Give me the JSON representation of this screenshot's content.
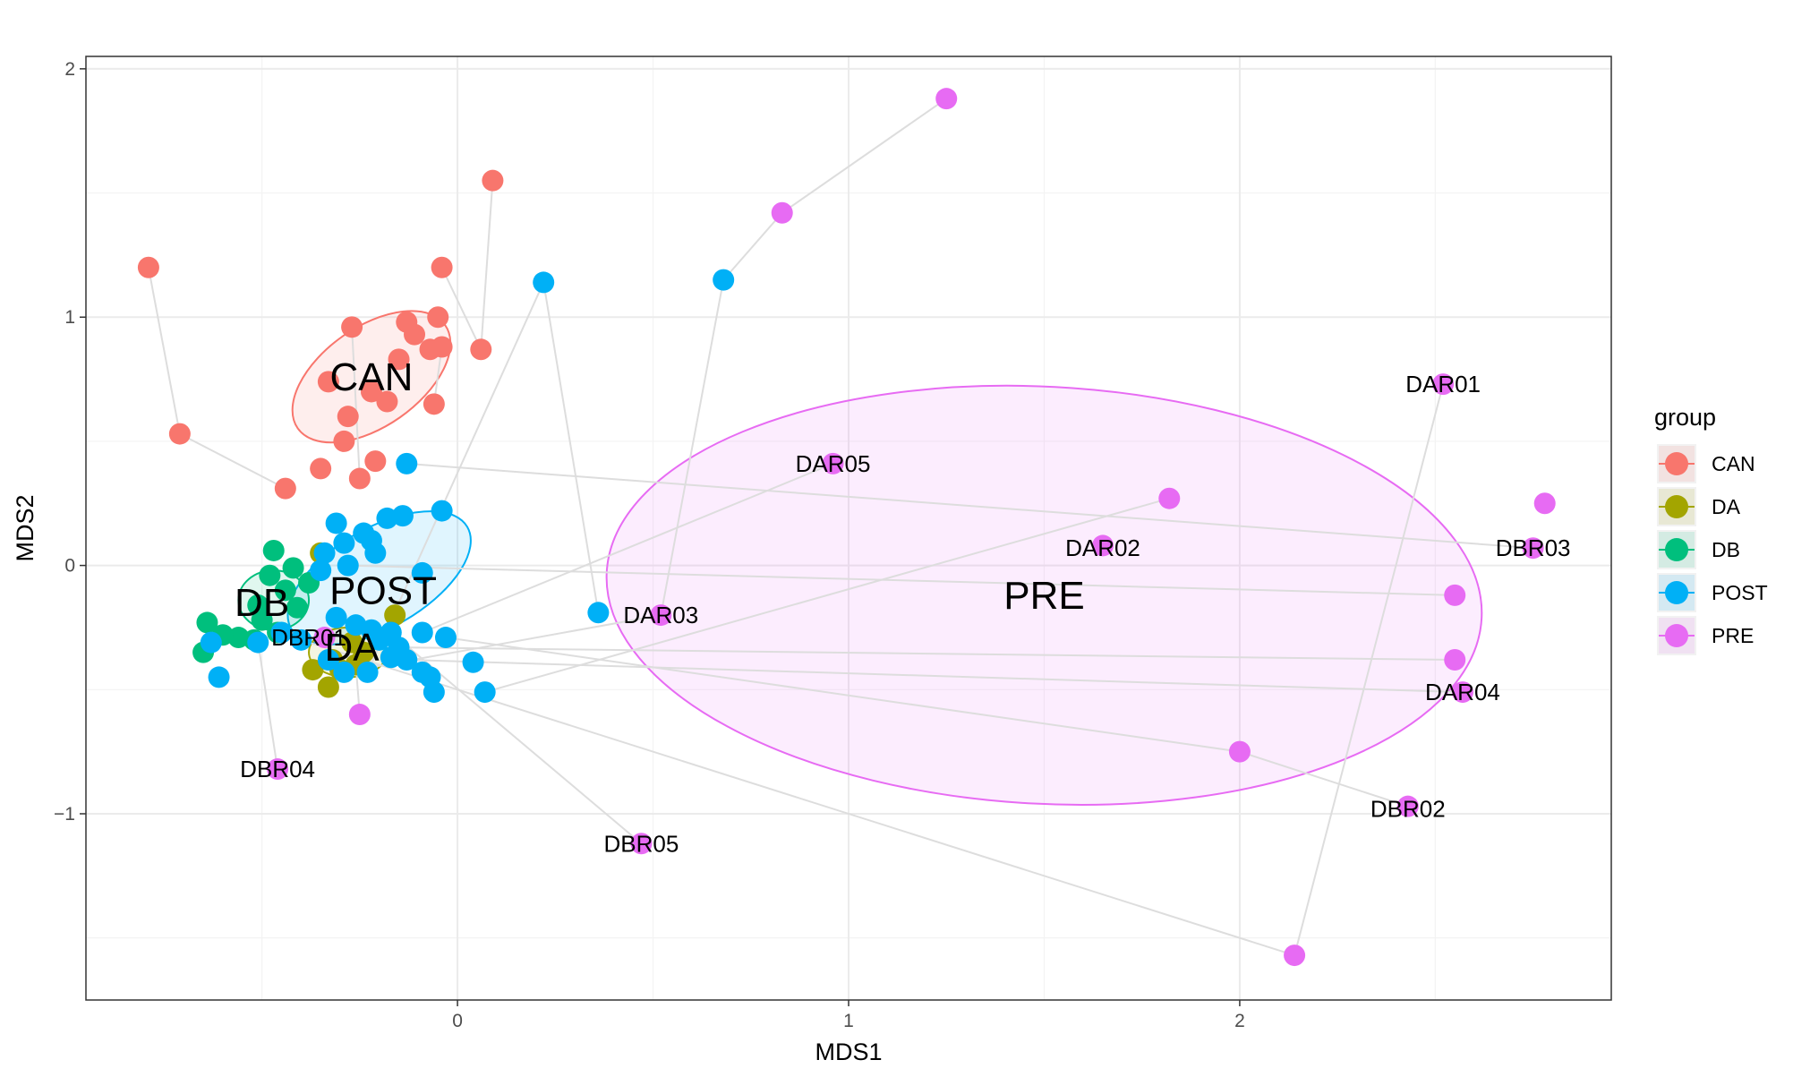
{
  "chart_data": {
    "type": "scatter",
    "xlabel": "MDS1",
    "ylabel": "MDS2",
    "xlim": [
      -0.95,
      2.95
    ],
    "ylim": [
      -1.75,
      2.05
    ],
    "xticks": [
      0,
      1,
      2
    ],
    "xtick_labels": [
      "0",
      "1",
      "2"
    ],
    "yticks": [
      -1,
      0,
      1,
      2
    ],
    "ytick_labels": [
      "−1",
      "0",
      "1",
      "2"
    ],
    "grid": true,
    "legend": {
      "title": "group",
      "position": "right",
      "entries": [
        "CAN",
        "DA",
        "DB",
        "POST",
        "PRE"
      ]
    },
    "colors": {
      "CAN": "#F8766D",
      "DA": "#A3A500",
      "DB": "#00BF7D",
      "POST": "#00B0F6",
      "PRE": "#E76BF3",
      "segment": "#dddddd",
      "grid_major": "#ebebeb",
      "grid_minor": "#f3f3f3",
      "panel_border": "#333333"
    },
    "ellipses": [
      {
        "group": "CAN",
        "cx": -0.22,
        "cy": 0.76,
        "rx": 0.23,
        "ry": 0.2,
        "angle_deg": 35
      },
      {
        "group": "POST",
        "cx": -0.2,
        "cy": -0.05,
        "rx": 0.26,
        "ry": 0.2,
        "angle_deg": 30
      },
      {
        "group": "DB",
        "cx": -0.47,
        "cy": -0.14,
        "rx": 0.09,
        "ry": 0.12,
        "angle_deg": 0
      },
      {
        "group": "DA",
        "cx": -0.28,
        "cy": -0.35,
        "rx": 0.1,
        "ry": 0.1,
        "angle_deg": 0
      },
      {
        "group": "PRE",
        "cx": 1.5,
        "cy": -0.12,
        "rx": 1.12,
        "ry": 0.84,
        "angle_deg": -3
      }
    ],
    "centroids": [
      {
        "label": "CAN",
        "x": -0.22,
        "y": 0.76
      },
      {
        "label": "POST",
        "x": -0.19,
        "y": -0.1
      },
      {
        "label": "DB",
        "x": -0.5,
        "y": -0.15
      },
      {
        "label": "DA",
        "x": -0.27,
        "y": -0.33
      },
      {
        "label": "PRE",
        "x": 1.5,
        "y": -0.12
      }
    ],
    "series": [
      {
        "name": "CAN",
        "points": [
          [
            -0.79,
            1.2
          ],
          [
            -0.71,
            0.53
          ],
          [
            0.09,
            1.55
          ],
          [
            -0.04,
            1.2
          ],
          [
            -0.05,
            1.0
          ],
          [
            -0.13,
            0.98
          ],
          [
            -0.27,
            0.96
          ],
          [
            -0.11,
            0.93
          ],
          [
            -0.07,
            0.87
          ],
          [
            -0.04,
            0.88
          ],
          [
            -0.15,
            0.83
          ],
          [
            0.06,
            0.87
          ],
          [
            -0.33,
            0.74
          ],
          [
            -0.22,
            0.7
          ],
          [
            -0.28,
            0.6
          ],
          [
            -0.18,
            0.66
          ],
          [
            -0.06,
            0.65
          ],
          [
            -0.29,
            0.5
          ],
          [
            -0.21,
            0.42
          ],
          [
            -0.35,
            0.39
          ],
          [
            -0.25,
            0.35
          ],
          [
            -0.44,
            0.31
          ]
        ]
      },
      {
        "name": "DA",
        "points": [
          [
            -0.35,
            0.05
          ],
          [
            -0.32,
            -0.38
          ],
          [
            -0.3,
            -0.42
          ],
          [
            -0.37,
            -0.42
          ],
          [
            -0.33,
            -0.49
          ],
          [
            -0.26,
            -0.4
          ],
          [
            -0.24,
            -0.35
          ],
          [
            -0.27,
            -0.31
          ],
          [
            -0.16,
            -0.2
          ]
        ]
      },
      {
        "name": "DB",
        "points": [
          [
            -0.47,
            0.06
          ],
          [
            -0.42,
            -0.01
          ],
          [
            -0.38,
            -0.07
          ],
          [
            -0.48,
            -0.04
          ],
          [
            -0.44,
            -0.1
          ],
          [
            -0.51,
            -0.16
          ],
          [
            -0.5,
            -0.22
          ],
          [
            -0.56,
            -0.29
          ],
          [
            -0.6,
            -0.28
          ],
          [
            -0.64,
            -0.23
          ],
          [
            -0.65,
            -0.35
          ],
          [
            -0.52,
            -0.3
          ],
          [
            -0.46,
            -0.27
          ],
          [
            -0.41,
            -0.17
          ]
        ]
      },
      {
        "name": "POST",
        "points": [
          [
            0.22,
            1.14
          ],
          [
            0.68,
            1.15
          ],
          [
            -0.13,
            0.41
          ],
          [
            -0.04,
            0.22
          ],
          [
            -0.14,
            0.2
          ],
          [
            -0.18,
            0.19
          ],
          [
            -0.31,
            0.17
          ],
          [
            -0.24,
            0.13
          ],
          [
            -0.29,
            0.09
          ],
          [
            -0.22,
            0.1
          ],
          [
            -0.34,
            0.05
          ],
          [
            -0.21,
            0.05
          ],
          [
            -0.28,
            0.0
          ],
          [
            -0.35,
            -0.02
          ],
          [
            -0.09,
            -0.03
          ],
          [
            0.36,
            -0.19
          ],
          [
            -0.31,
            -0.21
          ],
          [
            -0.26,
            -0.24
          ],
          [
            -0.22,
            -0.26
          ],
          [
            -0.17,
            -0.27
          ],
          [
            -0.09,
            -0.27
          ],
          [
            -0.2,
            -0.3
          ],
          [
            -0.15,
            -0.33
          ],
          [
            -0.03,
            -0.29
          ],
          [
            -0.4,
            -0.3
          ],
          [
            -0.51,
            -0.31
          ],
          [
            -0.63,
            -0.31
          ],
          [
            -0.17,
            -0.37
          ],
          [
            -0.13,
            -0.38
          ],
          [
            0.04,
            -0.39
          ],
          [
            -0.33,
            -0.38
          ],
          [
            -0.09,
            -0.43
          ],
          [
            -0.07,
            -0.45
          ],
          [
            -0.29,
            -0.43
          ],
          [
            -0.23,
            -0.43
          ],
          [
            -0.61,
            -0.45
          ],
          [
            -0.06,
            -0.51
          ],
          [
            0.07,
            -0.51
          ],
          [
            -0.45,
            -0.27
          ]
        ]
      },
      {
        "name": "PRE",
        "points": [
          [
            1.25,
            1.88
          ],
          [
            0.83,
            1.42
          ],
          [
            2.52,
            0.73
          ],
          [
            0.96,
            0.41
          ],
          [
            1.82,
            0.27
          ],
          [
            2.78,
            0.25
          ],
          [
            1.65,
            0.08
          ],
          [
            2.75,
            0.07
          ],
          [
            0.52,
            -0.2
          ],
          [
            2.55,
            -0.12
          ],
          [
            2.55,
            -0.38
          ],
          [
            2.57,
            -0.51
          ],
          [
            2.0,
            -0.75
          ],
          [
            2.43,
            -0.97
          ],
          [
            -0.46,
            -0.82
          ],
          [
            0.47,
            -1.12
          ],
          [
            2.14,
            -1.57
          ],
          [
            -0.25,
            -0.6
          ],
          [
            -0.34,
            -0.29
          ]
        ]
      }
    ],
    "segments": [
      {
        "from": [
          -0.79,
          1.2
        ],
        "to": [
          -0.71,
          0.53
        ]
      },
      {
        "from": [
          -0.71,
          0.53
        ],
        "to": [
          -0.44,
          0.31
        ]
      },
      {
        "from": [
          0.09,
          1.55
        ],
        "to": [
          0.06,
          0.87
        ]
      },
      {
        "from": [
          -0.04,
          1.2
        ],
        "to": [
          0.06,
          0.87
        ]
      },
      {
        "from": [
          -0.27,
          0.96
        ],
        "to": [
          -0.25,
          0.35
        ]
      },
      {
        "from": [
          -0.04,
          0.88
        ],
        "to": [
          -0.06,
          0.65
        ]
      },
      {
        "from": [
          1.25,
          1.88
        ],
        "to": [
          0.83,
          1.42
        ]
      },
      {
        "from": [
          0.83,
          1.42
        ],
        "to": [
          0.68,
          1.15
        ]
      },
      {
        "from": [
          0.68,
          1.15
        ],
        "to": [
          0.52,
          -0.2
        ]
      },
      {
        "from": [
          0.22,
          1.14
        ],
        "to": [
          0.36,
          -0.19
        ]
      },
      {
        "from": [
          0.22,
          1.14
        ],
        "to": [
          -0.23,
          -0.43
        ]
      },
      {
        "from": [
          2.52,
          0.73
        ],
        "to": [
          2.14,
          -1.57
        ]
      },
      {
        "from": [
          -0.13,
          0.41
        ],
        "to": [
          2.75,
          0.07
        ]
      },
      {
        "from": [
          0.96,
          0.41
        ],
        "to": [
          -0.09,
          -0.27
        ]
      },
      {
        "from": [
          1.82,
          0.27
        ],
        "to": [
          0.07,
          -0.51
        ]
      },
      {
        "from": [
          -0.28,
          0.0
        ],
        "to": [
          2.55,
          -0.12
        ]
      },
      {
        "from": [
          -0.15,
          -0.33
        ],
        "to": [
          2.55,
          -0.38
        ]
      },
      {
        "from": [
          0.52,
          -0.2
        ],
        "to": [
          -0.29,
          -0.43
        ]
      },
      {
        "from": [
          -0.13,
          -0.38
        ],
        "to": [
          2.57,
          -0.51
        ]
      },
      {
        "from": [
          -0.03,
          -0.29
        ],
        "to": [
          2.0,
          -0.75
        ]
      },
      {
        "from": [
          2.0,
          -0.75
        ],
        "to": [
          2.43,
          -0.97
        ]
      },
      {
        "from": [
          0.47,
          -1.12
        ],
        "to": [
          -0.17,
          -0.27
        ]
      },
      {
        "from": [
          -0.51,
          -0.31
        ],
        "to": [
          -0.46,
          -0.82
        ]
      },
      {
        "from": [
          -0.4,
          -0.3
        ],
        "to": [
          2.14,
          -1.57
        ]
      },
      {
        "from": [
          -0.25,
          -0.6
        ],
        "to": [
          -0.26,
          -0.4
        ]
      }
    ],
    "point_labels": [
      {
        "text": "DAR01",
        "x": 2.52,
        "y": 0.73
      },
      {
        "text": "DAR05",
        "x": 0.96,
        "y": 0.41
      },
      {
        "text": "DAR02",
        "x": 1.65,
        "y": 0.07
      },
      {
        "text": "DBR03",
        "x": 2.75,
        "y": 0.07
      },
      {
        "text": "DAR03",
        "x": 0.52,
        "y": -0.2
      },
      {
        "text": "DAR04",
        "x": 2.57,
        "y": -0.51
      },
      {
        "text": "DBR02",
        "x": 2.43,
        "y": -0.98
      },
      {
        "text": "DBR04",
        "x": -0.46,
        "y": -0.82
      },
      {
        "text": "DBR05",
        "x": 0.47,
        "y": -1.12
      },
      {
        "text": "DBR01",
        "x": -0.38,
        "y": -0.29
      }
    ]
  }
}
